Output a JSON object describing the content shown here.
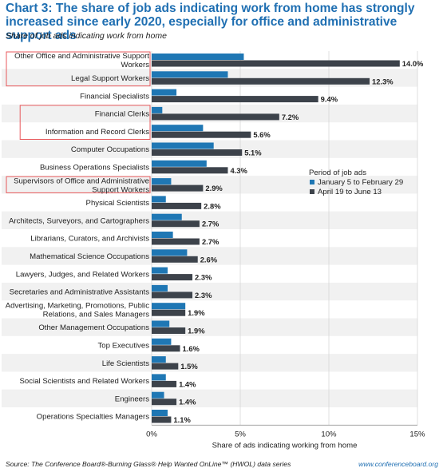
{
  "title": "Chart 3: The share of job ads indicating work from home has strongly increased since early 2020, especially for office and administrative support ads",
  "subtitle": "Share of job ads indicating work from home",
  "footer": {
    "source": "Source: The Conference Board®-Burning Glass® Help Wanted OnLine™ (HWOL) data series",
    "website": "www.conferenceboard.org"
  },
  "colors": {
    "series1": "#1f77b4",
    "series2": "#3d434b",
    "highlight_box": "#e8595c",
    "band": "#f1f1f1"
  },
  "chart_data": {
    "type": "bar",
    "orientation": "horizontal",
    "categories": [
      "Other Office and Administrative Support Workers",
      "Legal Support Workers",
      "Financial Specialists",
      "Financial Clerks",
      "Information and Record Clerks",
      "Computer Occupations",
      "Business Operations Specialists",
      "Supervisors of Office and Administrative Support Workers",
      "Physical Scientists",
      "Architects, Surveyors, and Cartographers",
      "Librarians, Curators, and Archivists",
      "Mathematical Science Occupations",
      "Lawyers, Judges, and Related Workers",
      "Secretaries and Administrative Assistants",
      "Advertising, Marketing, Promotions, Public Relations, and Sales Managers",
      "Other Management Occupations",
      "Top Executives",
      "Life Scientists",
      "Social Scientists and Related Workers",
      "Engineers",
      "Operations Specialties Managers"
    ],
    "series": [
      {
        "name": "January 5 to February 29",
        "values": [
          5.2,
          4.3,
          1.4,
          0.6,
          2.9,
          3.5,
          3.1,
          1.1,
          0.8,
          1.7,
          1.2,
          2.0,
          0.9,
          0.9,
          1.9,
          1.0,
          1.1,
          0.8,
          0.8,
          0.7,
          0.9
        ]
      },
      {
        "name": "April 19 to June 13",
        "values": [
          14.0,
          12.3,
          9.4,
          7.2,
          5.6,
          5.1,
          4.3,
          2.9,
          2.8,
          2.7,
          2.7,
          2.6,
          2.3,
          2.3,
          1.9,
          1.9,
          1.6,
          1.5,
          1.4,
          1.4,
          1.1
        ]
      }
    ],
    "value_labels": [
      "14.0%",
      "12.3%",
      "9.4%",
      "7.2%",
      "5.6%",
      "5.1%",
      "4.3%",
      "2.9%",
      "2.8%",
      "2.7%",
      "2.7%",
      "2.6%",
      "2.3%",
      "2.3%",
      "1.9%",
      "1.9%",
      "1.6%",
      "1.5%",
      "1.4%",
      "1.4%",
      "1.1%"
    ],
    "xlabel": "Share of ads indicating working from home",
    "xlim": [
      0,
      15
    ],
    "xticks": [
      0,
      5,
      10,
      15
    ],
    "xtick_labels": [
      "0%",
      "5%",
      "10%",
      "15%"
    ],
    "legend": {
      "title": "Period of job ads",
      "placement": "right-middle"
    },
    "highlighted_categories": [
      "Other Office and Administrative Support Workers",
      "Legal Support Workers",
      "Financial Clerks",
      "Information and Record Clerks",
      "Supervisors of Office and Administrative Support Workers"
    ]
  }
}
